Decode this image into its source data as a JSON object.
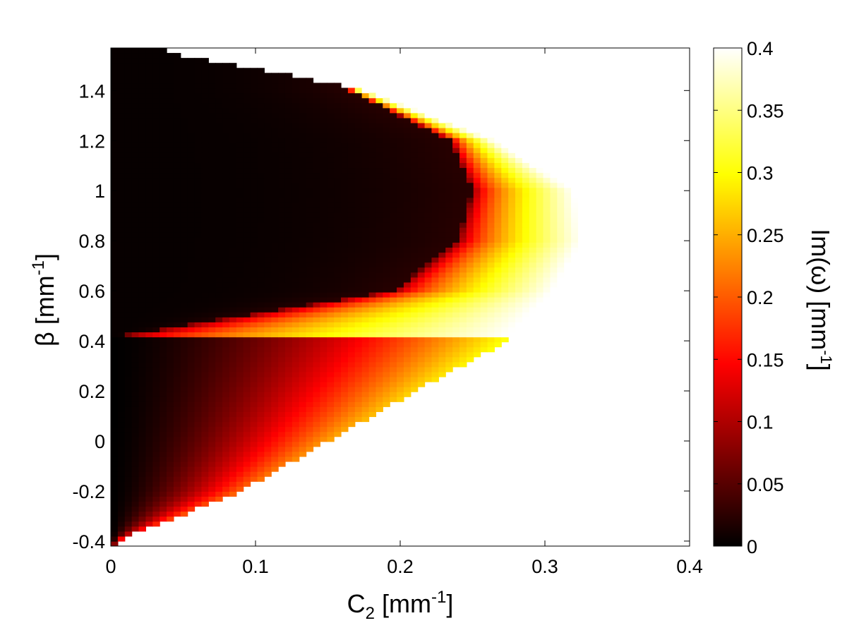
{
  "chart_data": {
    "type": "heatmap",
    "title": "",
    "xlabel": {
      "base": "C",
      "sub": "2",
      "unit_open": " [mm",
      "unit_sup": "-1",
      "unit_close": "]"
    },
    "ylabel": {
      "base": "β",
      "unit_open": " [mm",
      "unit_sup": "-1",
      "unit_close": "]"
    },
    "colorbar_label": {
      "base": "Im(ω)",
      "unit_open": " [mm",
      "unit_sup": "-1",
      "unit_close": "]"
    },
    "colormap": "hot",
    "xlim": [
      0,
      0.4
    ],
    "ylim": [
      -0.42,
      1.57
    ],
    "xticks": [
      0,
      0.1,
      0.2,
      0.3,
      0.4
    ],
    "xtick_labels": [
      "0",
      "0.1",
      "0.2",
      "0.3",
      "0.4"
    ],
    "yticks": [
      -0.4,
      -0.2,
      0,
      0.2,
      0.4,
      0.6,
      0.8,
      1,
      1.2,
      1.4
    ],
    "ytick_labels": [
      "-0.4",
      "-0.2",
      "0",
      "0.2",
      "0.4",
      "0.6",
      "0.8",
      "1",
      "1.2",
      "1.4"
    ],
    "clim": [
      0,
      0.4
    ],
    "cticks": [
      0,
      0.05,
      0.1,
      0.15,
      0.2,
      0.25,
      0.3,
      0.35,
      0.4
    ],
    "ctick_labels": [
      "0",
      "0.05",
      "0.1",
      "0.15",
      "0.2",
      "0.25",
      "0.3",
      "0.35",
      "0.4"
    ],
    "grid": {
      "nx": 83,
      "ny": 100,
      "c2_step": 0.004,
      "beta_step": 0.0199
    },
    "instability_boundary": {
      "description": "Unstable region bounded by a parabola-like curve; outside is white (no data)",
      "vertex": {
        "c2": 0.33,
        "beta": 0.8
      },
      "width_coefficient": 0.33,
      "points": [
        {
          "beta": -0.4,
          "c2_max": 0.004
        },
        {
          "beta": -0.2,
          "c2_max": 0.09
        },
        {
          "beta": 0.0,
          "c2_max": 0.15
        },
        {
          "beta": 0.2,
          "c2_max": 0.21
        },
        {
          "beta": 0.4,
          "c2_max": 0.275
        },
        {
          "beta": 0.6,
          "c2_max": 0.31
        },
        {
          "beta": 0.8,
          "c2_max": 0.33
        },
        {
          "beta": 1.0,
          "c2_max": 0.325
        },
        {
          "beta": 1.2,
          "c2_max": 0.27
        },
        {
          "beta": 1.4,
          "c2_max": 0.18
        },
        {
          "beta": 1.55,
          "c2_max": 0.04
        }
      ]
    },
    "stable_dark_region": {
      "description": "Near-zero growth lobe from beta≈0.42 to 1.57, extending to C2≈0.25 at beta≈0.95",
      "points": [
        {
          "beta": 0.42,
          "c2_max": 0.01
        },
        {
          "beta": 0.6,
          "c2_max": 0.2
        },
        {
          "beta": 0.8,
          "c2_max": 0.245
        },
        {
          "beta": 1.0,
          "c2_max": 0.255
        },
        {
          "beta": 1.2,
          "c2_max": 0.24
        },
        {
          "beta": 1.4,
          "c2_max": 0.17
        }
      ]
    },
    "max_value_approx": 0.4
  }
}
